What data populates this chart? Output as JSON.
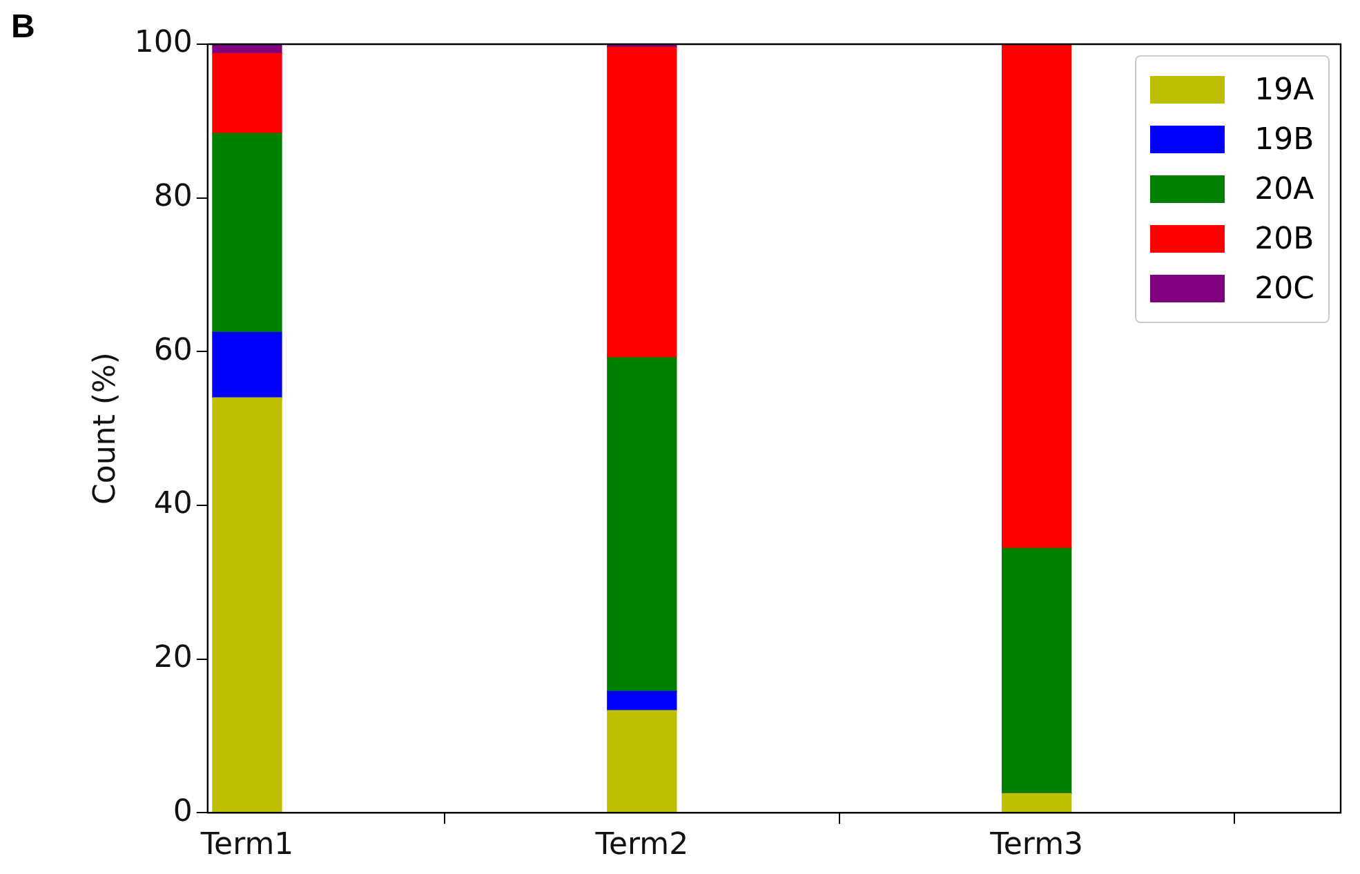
{
  "chart_data": {
    "type": "bar",
    "stacked": true,
    "ylabel": "Count (%)",
    "annotations": [
      "B"
    ],
    "categories": [
      "Term1",
      "Term2",
      "Term3"
    ],
    "series": [
      {
        "name": "19A",
        "color": "#bfbf00",
        "values": [
          54.0,
          13.3,
          2.5
        ]
      },
      {
        "name": "19B",
        "color": "#0000ff",
        "values": [
          8.5,
          2.5,
          0
        ]
      },
      {
        "name": "20A",
        "color": "#008000",
        "values": [
          25.9,
          43.4,
          31.9
        ]
      },
      {
        "name": "20B",
        "color": "#ff0000",
        "values": [
          10.4,
          40.4,
          65.6
        ]
      },
      {
        "name": "20C",
        "color": "#800080",
        "values": [
          1.2,
          0.4,
          0
        ]
      }
    ],
    "ylim": [
      0,
      100
    ],
    "yticks": [
      0,
      20,
      40,
      60,
      80,
      100
    ],
    "grid": false,
    "legend": "top right"
  }
}
